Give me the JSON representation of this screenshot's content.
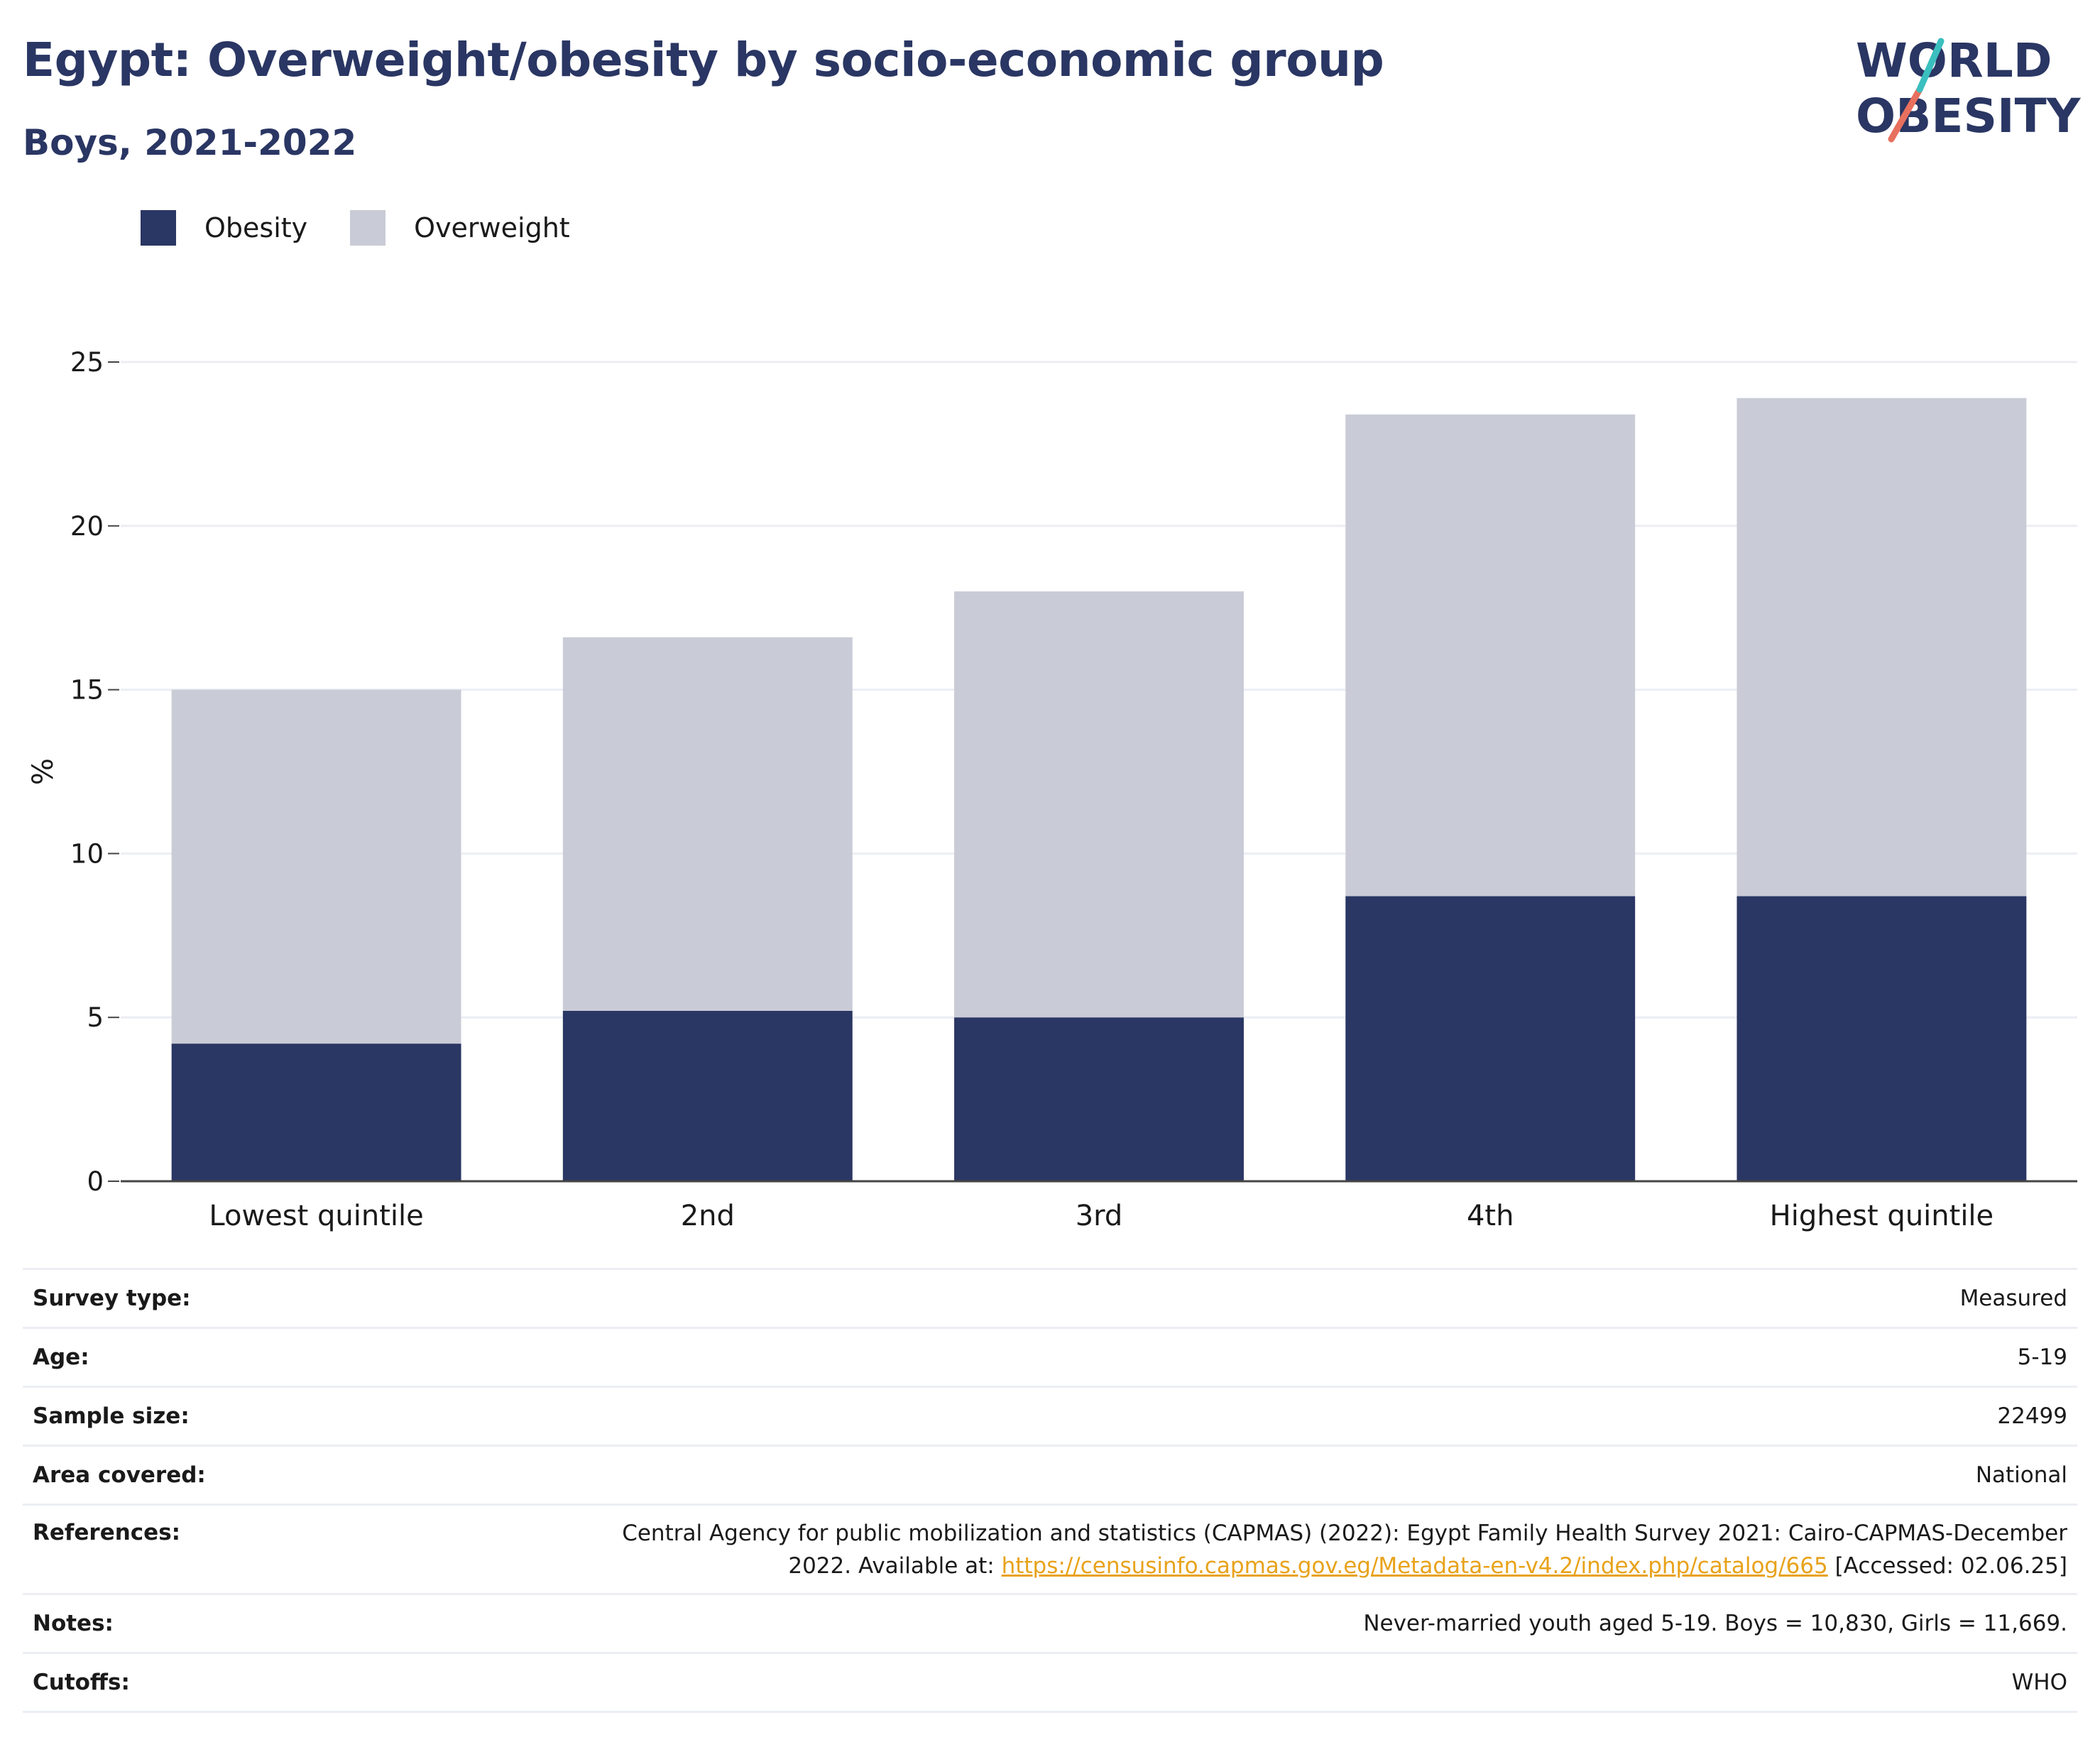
{
  "title": "Egypt: Overweight/obesity by socio-economic group",
  "subtitle": "Boys, 2021-2022",
  "logo": {
    "line1": "WORLD",
    "line2": "OBESITY",
    "text_color": "#2a3663",
    "accent_teal": "#3bbfbf",
    "accent_coral": "#e8705e"
  },
  "legend": [
    {
      "label": "Obesity",
      "color": "#2a3663"
    },
    {
      "label": "Overweight",
      "color": "#c9cbd6"
    }
  ],
  "chart_data": {
    "type": "bar",
    "stacked": true,
    "title": "",
    "xlabel": "",
    "ylabel": "%",
    "ylim": [
      0,
      25
    ],
    "yticks": [
      0,
      5,
      10,
      15,
      20,
      25
    ],
    "grid": true,
    "legend_position": "top-left",
    "categories": [
      "Lowest quintile",
      "2nd",
      "3rd",
      "4th",
      "Highest quintile"
    ],
    "series": [
      {
        "name": "Obesity",
        "color": "#2a3663",
        "values": [
          4.2,
          5.2,
          5.0,
          8.7,
          8.7
        ]
      },
      {
        "name": "Overweight",
        "color": "#c9cbd6",
        "values": [
          10.8,
          11.4,
          13.0,
          14.7,
          15.2
        ]
      }
    ]
  },
  "meta": {
    "survey_type": {
      "label": "Survey type:",
      "value": "Measured"
    },
    "age": {
      "label": "Age:",
      "value": "5-19"
    },
    "sample_size": {
      "label": "Sample size:",
      "value": "22499"
    },
    "area": {
      "label": "Area covered:",
      "value": "National"
    },
    "references": {
      "label": "References:",
      "line1": "Central Agency for public mobilization and statistics (CAPMAS) (2022): Egypt Family Health Survey 2021: Cairo-CAPMAS-December",
      "line2_prefix": "2022. Available at: ",
      "link": "https://censusinfo.capmas.gov.eg/Metadata-en-v4.2/index.php/catalog/665",
      "suffix": " [Accessed: 02.06.25]"
    },
    "notes": {
      "label": "Notes:",
      "value": "Never-married youth aged 5-19. Boys = 10,830, Girls = 11,669."
    },
    "cutoffs": {
      "label": "Cutoffs:",
      "value": "WHO"
    }
  }
}
